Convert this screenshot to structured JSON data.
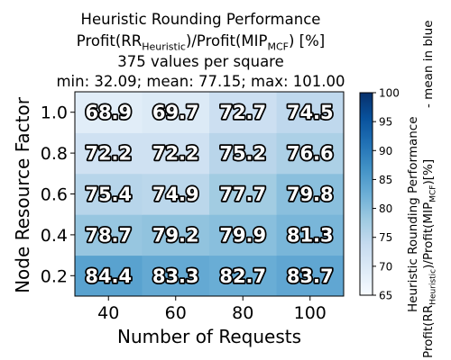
{
  "title": {
    "line1": "Heuristic Rounding Performance",
    "line2_prefix": "Profit(RR",
    "line2_sub1": "Heuristic",
    "line2_mid": ")/Profit(MIP",
    "line2_sub2": "MCF",
    "line2_suffix": ") [%]",
    "line3": "375 values per square",
    "line4": "min: 32.09; mean: 77.15; max: 101.00"
  },
  "colorbar_label": {
    "line1": "Heuristic Rounding Performance",
    "line2_prefix": "Profit(RR",
    "line2_sub1": "Heuristic",
    "line2_mid": ")/Profit(MIP",
    "line2_sub2": "MCF",
    "line2_suffix": ")[%]",
    "note": "- mean in blue"
  },
  "chart_data": {
    "type": "heatmap",
    "xlabel": "Number of Requests",
    "ylabel": "Node Resource Factor",
    "x": [
      40,
      60,
      80,
      100
    ],
    "x_tick_labels": [
      "40",
      "60",
      "80",
      "100"
    ],
    "y": [
      0.2,
      0.4,
      0.6,
      0.8,
      1.0
    ],
    "y_tick_labels": [
      "0.2",
      "0.4",
      "0.6",
      "0.8",
      "1.0"
    ],
    "values": [
      [
        84.4,
        83.3,
        82.7,
        83.7
      ],
      [
        78.7,
        79.2,
        79.9,
        81.3
      ],
      [
        75.4,
        74.9,
        77.7,
        79.8
      ],
      [
        72.2,
        72.2,
        75.2,
        76.6
      ],
      [
        68.9,
        69.7,
        72.7,
        74.5
      ]
    ],
    "colorscale": "Blues",
    "vmin": 65,
    "vmax": 100,
    "colorbar_ticks": [
      65,
      70,
      75,
      80,
      85,
      90,
      95,
      100
    ],
    "colorbar_tick_labels": [
      "65",
      "70",
      "75",
      "80",
      "85",
      "90",
      "95",
      "100"
    ]
  }
}
